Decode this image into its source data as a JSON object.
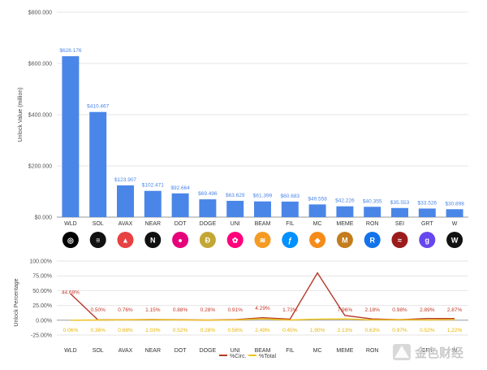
{
  "colors": {
    "bar": "#4a86e8",
    "circ_line": "#b5392a",
    "total_line": "#f0c419",
    "grid": "#e6e6e6"
  },
  "chart_data": [
    {
      "type": "bar",
      "categories": [
        "WLD",
        "SOL",
        "AVAX",
        "NEAR",
        "DOT",
        "DOGE",
        "UNI",
        "BEAM",
        "FIL",
        "MC",
        "MEME",
        "RON",
        "SEI",
        "GRT",
        "W"
      ],
      "values": [
        628.176,
        410.467,
        123.907,
        102.471,
        92.664,
        69.496,
        63.629,
        61.399,
        60.683,
        49.558,
        42.226,
        40.355,
        35.553,
        33.526,
        30.898
      ],
      "value_labels": [
        "$628.176",
        "$410.467",
        "$123.907",
        "$102.471",
        "$92.664",
        "$69.496",
        "$63.629",
        "$61.399",
        "$60.683",
        "$49.558",
        "$42.226",
        "$40.355",
        "$35.553",
        "$33.526",
        "$30.898"
      ],
      "ylabel": "Unlock Value (million)",
      "ylim": [
        0,
        800
      ],
      "yticks": [
        0,
        200,
        400,
        600,
        800
      ],
      "ytick_labels": [
        "$0.000",
        "$200.000",
        "$400.000",
        "$600.000",
        "$800.000"
      ],
      "grid": true
    },
    {
      "type": "line",
      "categories": [
        "WLD",
        "SOL",
        "AVAX",
        "NEAR",
        "DOT",
        "DOGE",
        "UNI",
        "BEAM",
        "FIL",
        "MC",
        "MEME",
        "RON",
        "SEI",
        "GRT",
        "W"
      ],
      "ylabel": "Unlock Percentage",
      "ylim": [
        -25,
        100
      ],
      "yticks": [
        -25,
        0,
        25,
        50,
        75,
        100
      ],
      "ytick_labels": [
        "-25.00%",
        "0.00%",
        "25.00%",
        "50.00%",
        "75.00%",
        "100.00%"
      ],
      "legend_position": "bottom",
      "series": [
        {
          "name": "%Circ.",
          "values": [
            44.68,
            0.5,
            0.76,
            1.15,
            0.88,
            0.28,
            0.91,
            4.29,
            1.73,
            80.0,
            7.96,
            2.18,
            0.98,
            2.89,
            2.87
          ],
          "labels": [
            "44.68%",
            "0.50%",
            "0.76%",
            "1.15%",
            "0.88%",
            "0.28%",
            "0.91%",
            "4.29%",
            "1.73%",
            "",
            "7.96%",
            "2.18%",
            "0.98%",
            "2.89%",
            "2.87%"
          ]
        },
        {
          "name": "%Total",
          "values": [
            0.06,
            0.36,
            0.68,
            1.03,
            0.52,
            0.28,
            0.56,
            2.49,
            0.45,
            1.9,
            2.13,
            0.63,
            0.97,
            0.52,
            1.22
          ],
          "labels": [
            "0.06%",
            "0.36%",
            "0.68%",
            "1.03%",
            "0.52%",
            "0.28%",
            "0.56%",
            "2.49%",
            "0.45%",
            "1.90%",
            "2.13%",
            "0.63%",
            "0.97%",
            "0.52%",
            "1.22%"
          ]
        }
      ]
    }
  ],
  "token_logos": [
    {
      "symbol": "WLD",
      "icon": "worldcoin-icon",
      "color": "#000000",
      "glyph": "◎"
    },
    {
      "symbol": "SOL",
      "icon": "solana-icon",
      "color": "#111111",
      "glyph": "≡"
    },
    {
      "symbol": "AVAX",
      "icon": "avalanche-icon",
      "color": "#e84142",
      "glyph": "▲"
    },
    {
      "symbol": "NEAR",
      "icon": "near-icon",
      "color": "#111111",
      "glyph": "N"
    },
    {
      "symbol": "DOT",
      "icon": "polkadot-icon",
      "color": "#e6007a",
      "glyph": "●"
    },
    {
      "symbol": "DOGE",
      "icon": "dogecoin-icon",
      "color": "#c3a634",
      "glyph": "Ð"
    },
    {
      "symbol": "UNI",
      "icon": "uniswap-icon",
      "color": "#ff007a",
      "glyph": "✿"
    },
    {
      "symbol": "BEAM",
      "icon": "beam-icon",
      "color": "#f59a23",
      "glyph": "≋"
    },
    {
      "symbol": "FIL",
      "icon": "filecoin-icon",
      "color": "#0090ff",
      "glyph": "ƒ"
    },
    {
      "symbol": "MC",
      "icon": "merit-circle-icon",
      "color": "#f58b18",
      "glyph": "◆"
    },
    {
      "symbol": "MEME",
      "icon": "memecoin-icon",
      "color": "#c47d1e",
      "glyph": "M"
    },
    {
      "symbol": "RON",
      "icon": "ronin-icon",
      "color": "#1273ea",
      "glyph": "R"
    },
    {
      "symbol": "SEI",
      "icon": "sei-icon",
      "color": "#9b1c1c",
      "glyph": "≈"
    },
    {
      "symbol": "GRT",
      "icon": "the-graph-icon",
      "color": "#6747ed",
      "glyph": "g"
    },
    {
      "symbol": "W",
      "icon": "wormhole-icon",
      "color": "#111111",
      "glyph": "W"
    }
  ],
  "watermark": {
    "icon": "jinse-logo-icon",
    "text": "金色财经"
  }
}
